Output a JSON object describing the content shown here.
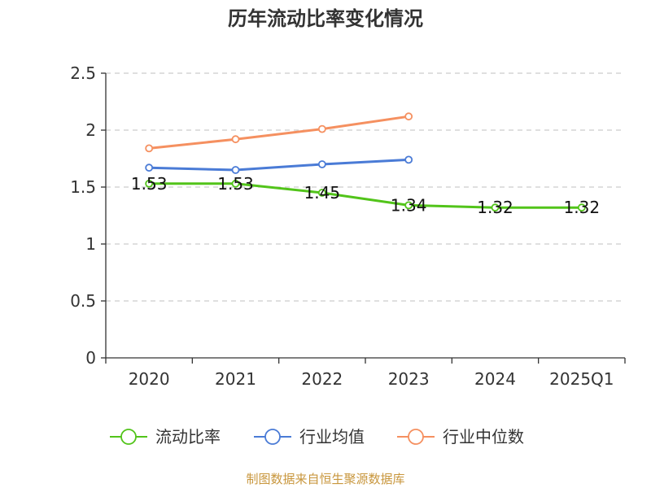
{
  "chart_data": {
    "type": "line",
    "title": "历年流动比率变化情况",
    "categories": [
      "2020",
      "2021",
      "2022",
      "2023",
      "2024",
      "2025Q1"
    ],
    "ylim": [
      0,
      2.5
    ],
    "yticks": [
      0,
      0.5,
      1,
      1.5,
      2,
      2.5
    ],
    "ytick_labels": [
      "0",
      "0.5",
      "1",
      "1.5",
      "2",
      "2.5"
    ],
    "grid": true,
    "legend_position": "bottom",
    "series": [
      {
        "name": "流动比率",
        "color": "#52c41a",
        "values": [
          1.53,
          1.53,
          1.45,
          1.34,
          1.32,
          1.32
        ],
        "labels": [
          "1.53",
          "1.53",
          "1.45",
          "1.34",
          "1.32",
          "1.32"
        ],
        "show_labels": true
      },
      {
        "name": "行业均值",
        "color": "#4a7bd6",
        "values": [
          1.67,
          1.65,
          1.7,
          1.74,
          null,
          null
        ],
        "show_labels": false
      },
      {
        "name": "行业中位数",
        "color": "#f59060",
        "values": [
          1.84,
          1.92,
          2.01,
          2.12,
          null,
          null
        ],
        "show_labels": false
      }
    ],
    "source": "制图数据来自恒生聚源数据库"
  }
}
